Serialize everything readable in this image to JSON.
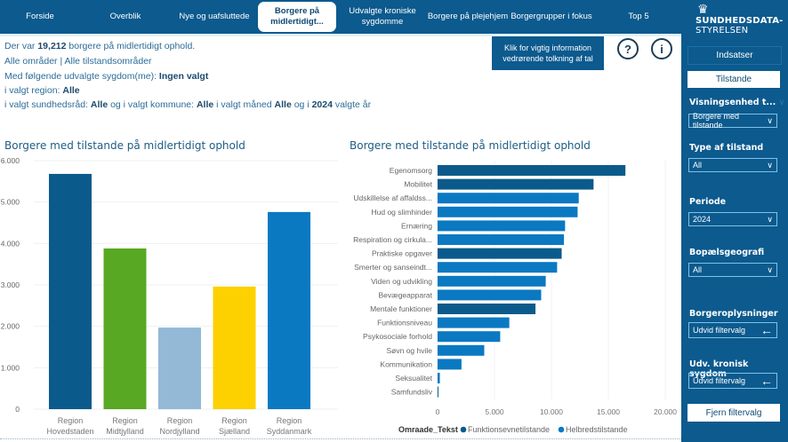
{
  "nav": {
    "tabs": [
      {
        "label": "Forside",
        "active": false
      },
      {
        "label": "Overblik",
        "active": false
      },
      {
        "label": "Nye og uafsluttede",
        "active": false
      },
      {
        "label": "Borgere på midlertidigt...",
        "active": true
      },
      {
        "label": "Udvalgte kroniske sygdomme",
        "active": false
      },
      {
        "label": "Borgere på plejehjem",
        "active": false
      },
      {
        "label": "Borgergrupper i fokus",
        "active": false
      },
      {
        "label": "Top 5",
        "active": false
      }
    ]
  },
  "logo": {
    "crown": "♛",
    "line1": "SUNDHEDSDATA-",
    "line2": "STYRELSEN"
  },
  "summary": {
    "line1_pre": "Der var ",
    "count": "19,212",
    "line1_post": " borgere på midlertidigt ophold.",
    "line2": "Alle områder | Alle tilstandsområder",
    "line3_pre": "Med følgende udvalgte sygdom(me): ",
    "line3_val": "Ingen valgt",
    "line4_pre": "i valgt region: ",
    "line4_val": "Alle",
    "line5_a": "i valgt sundhedsråd: ",
    "line5_b": "Alle",
    "line5_c": " og i valgt kommune: ",
    "line5_d": "Alle",
    "line5_e": " i valgt måned ",
    "line5_f": "Alle",
    "line5_g": " og i ",
    "line5_h": "2024",
    "line5_i": " valgte år"
  },
  "info_button": "Klik for vigtig information vedrørende tolkning af tal",
  "help_icon": "?",
  "info_icon": "i",
  "sidebar": {
    "btn_indsatser": "Indsatser",
    "btn_tilstande": "Tilstande",
    "visning_label": "Visningsenhed t...",
    "visning_value": "Borgere med tilstande",
    "type_label": "Type af tilstand",
    "type_value": "All",
    "periode_label": "Periode",
    "periode_value": "2024",
    "bopael_label": "Bopælsgeografi",
    "bopael_value": "All",
    "borgeropl_label": "Borgeroplysninger",
    "borgeropl_value": "Udvid filtervalg",
    "kronisk_label": "Udv. kronisk sygdom",
    "kronisk_value": "Udvid filtervalg",
    "reset": "Fjern filtervalg",
    "chevron": "∨",
    "arrow": "←"
  },
  "chart_data": [
    {
      "type": "bar",
      "title": "Borgere med tilstande på midlertidigt ophold",
      "categories": [
        "Region Hovedstaden",
        "Region Midtjylland",
        "Region Nordjylland",
        "Region Sjælland",
        "Region Syddanmark"
      ],
      "category_lines": [
        [
          "Region",
          "Hovedstaden"
        ],
        [
          "Region",
          "Midtjylland"
        ],
        [
          "Region",
          "Nordjylland"
        ],
        [
          "Region",
          "Sjælland"
        ],
        [
          "Region",
          "Syddanmark"
        ]
      ],
      "values": [
        5680,
        3880,
        1970,
        2960,
        4760
      ],
      "colors": [
        "#0b5a8c",
        "#58a823",
        "#93b9d6",
        "#fdd000",
        "#0a79c2"
      ],
      "xlabel": "",
      "ylabel": "",
      "ylim": [
        0,
        6000
      ],
      "yticks": [
        0,
        1000,
        2000,
        3000,
        4000,
        5000,
        6000
      ],
      "ytick_labels": [
        "0",
        "1.000",
        "2.000",
        "3.000",
        "4.000",
        "5.000",
        "6.000"
      ],
      "grid": true
    },
    {
      "type": "bar",
      "orientation": "horizontal",
      "title": "Borgere med tilstande på midlertidigt ophold",
      "categories": [
        "Egenomsorg",
        "Mobilitet",
        "Udskillelse af affaldss...",
        "Hud og slimhinder",
        "Ernæring",
        "Respiration og cirkula...",
        "Praktiske opgaver",
        "Smerter og sanseindt...",
        "Viden og udvikling",
        "Bevægeapparat",
        "Mentale funktioner",
        "Funktionsniveau",
        "Psykosociale forhold",
        "Søvn og hvile",
        "Kommunikation",
        "Seksualitet",
        "Samfundsliv"
      ],
      "values": [
        16500,
        13700,
        12400,
        12300,
        11200,
        11100,
        10900,
        10500,
        9500,
        9100,
        8600,
        6300,
        5500,
        4100,
        2100,
        200,
        50
      ],
      "series_of_category": [
        "Funktionsevnetilstande",
        "Funktionsevnetilstande",
        "Helbredstilstande",
        "Helbredstilstande",
        "Helbredstilstande",
        "Helbredstilstande",
        "Funktionsevnetilstande",
        "Helbredstilstande",
        "Helbredstilstande",
        "Helbredstilstande",
        "Funktionsevnetilstande",
        "Helbredstilstande",
        "Helbredstilstande",
        "Helbredstilstande",
        "Helbredstilstande",
        "Helbredstilstande",
        "Funktionsevnetilstande"
      ],
      "legend_title": "Omraade_Tekst",
      "legend": [
        {
          "name": "Funktionsevnetilstande",
          "color": "#0b5a8c"
        },
        {
          "name": "Helbredstilstande",
          "color": "#0a79c2"
        }
      ],
      "legend_position": "bottom",
      "xlim": [
        0,
        20000
      ],
      "xticks": [
        0,
        5000,
        10000,
        15000,
        20000
      ],
      "xtick_labels": [
        "0",
        "5.000",
        "10.000",
        "15.000",
        "20.000"
      ],
      "grid": true
    }
  ]
}
